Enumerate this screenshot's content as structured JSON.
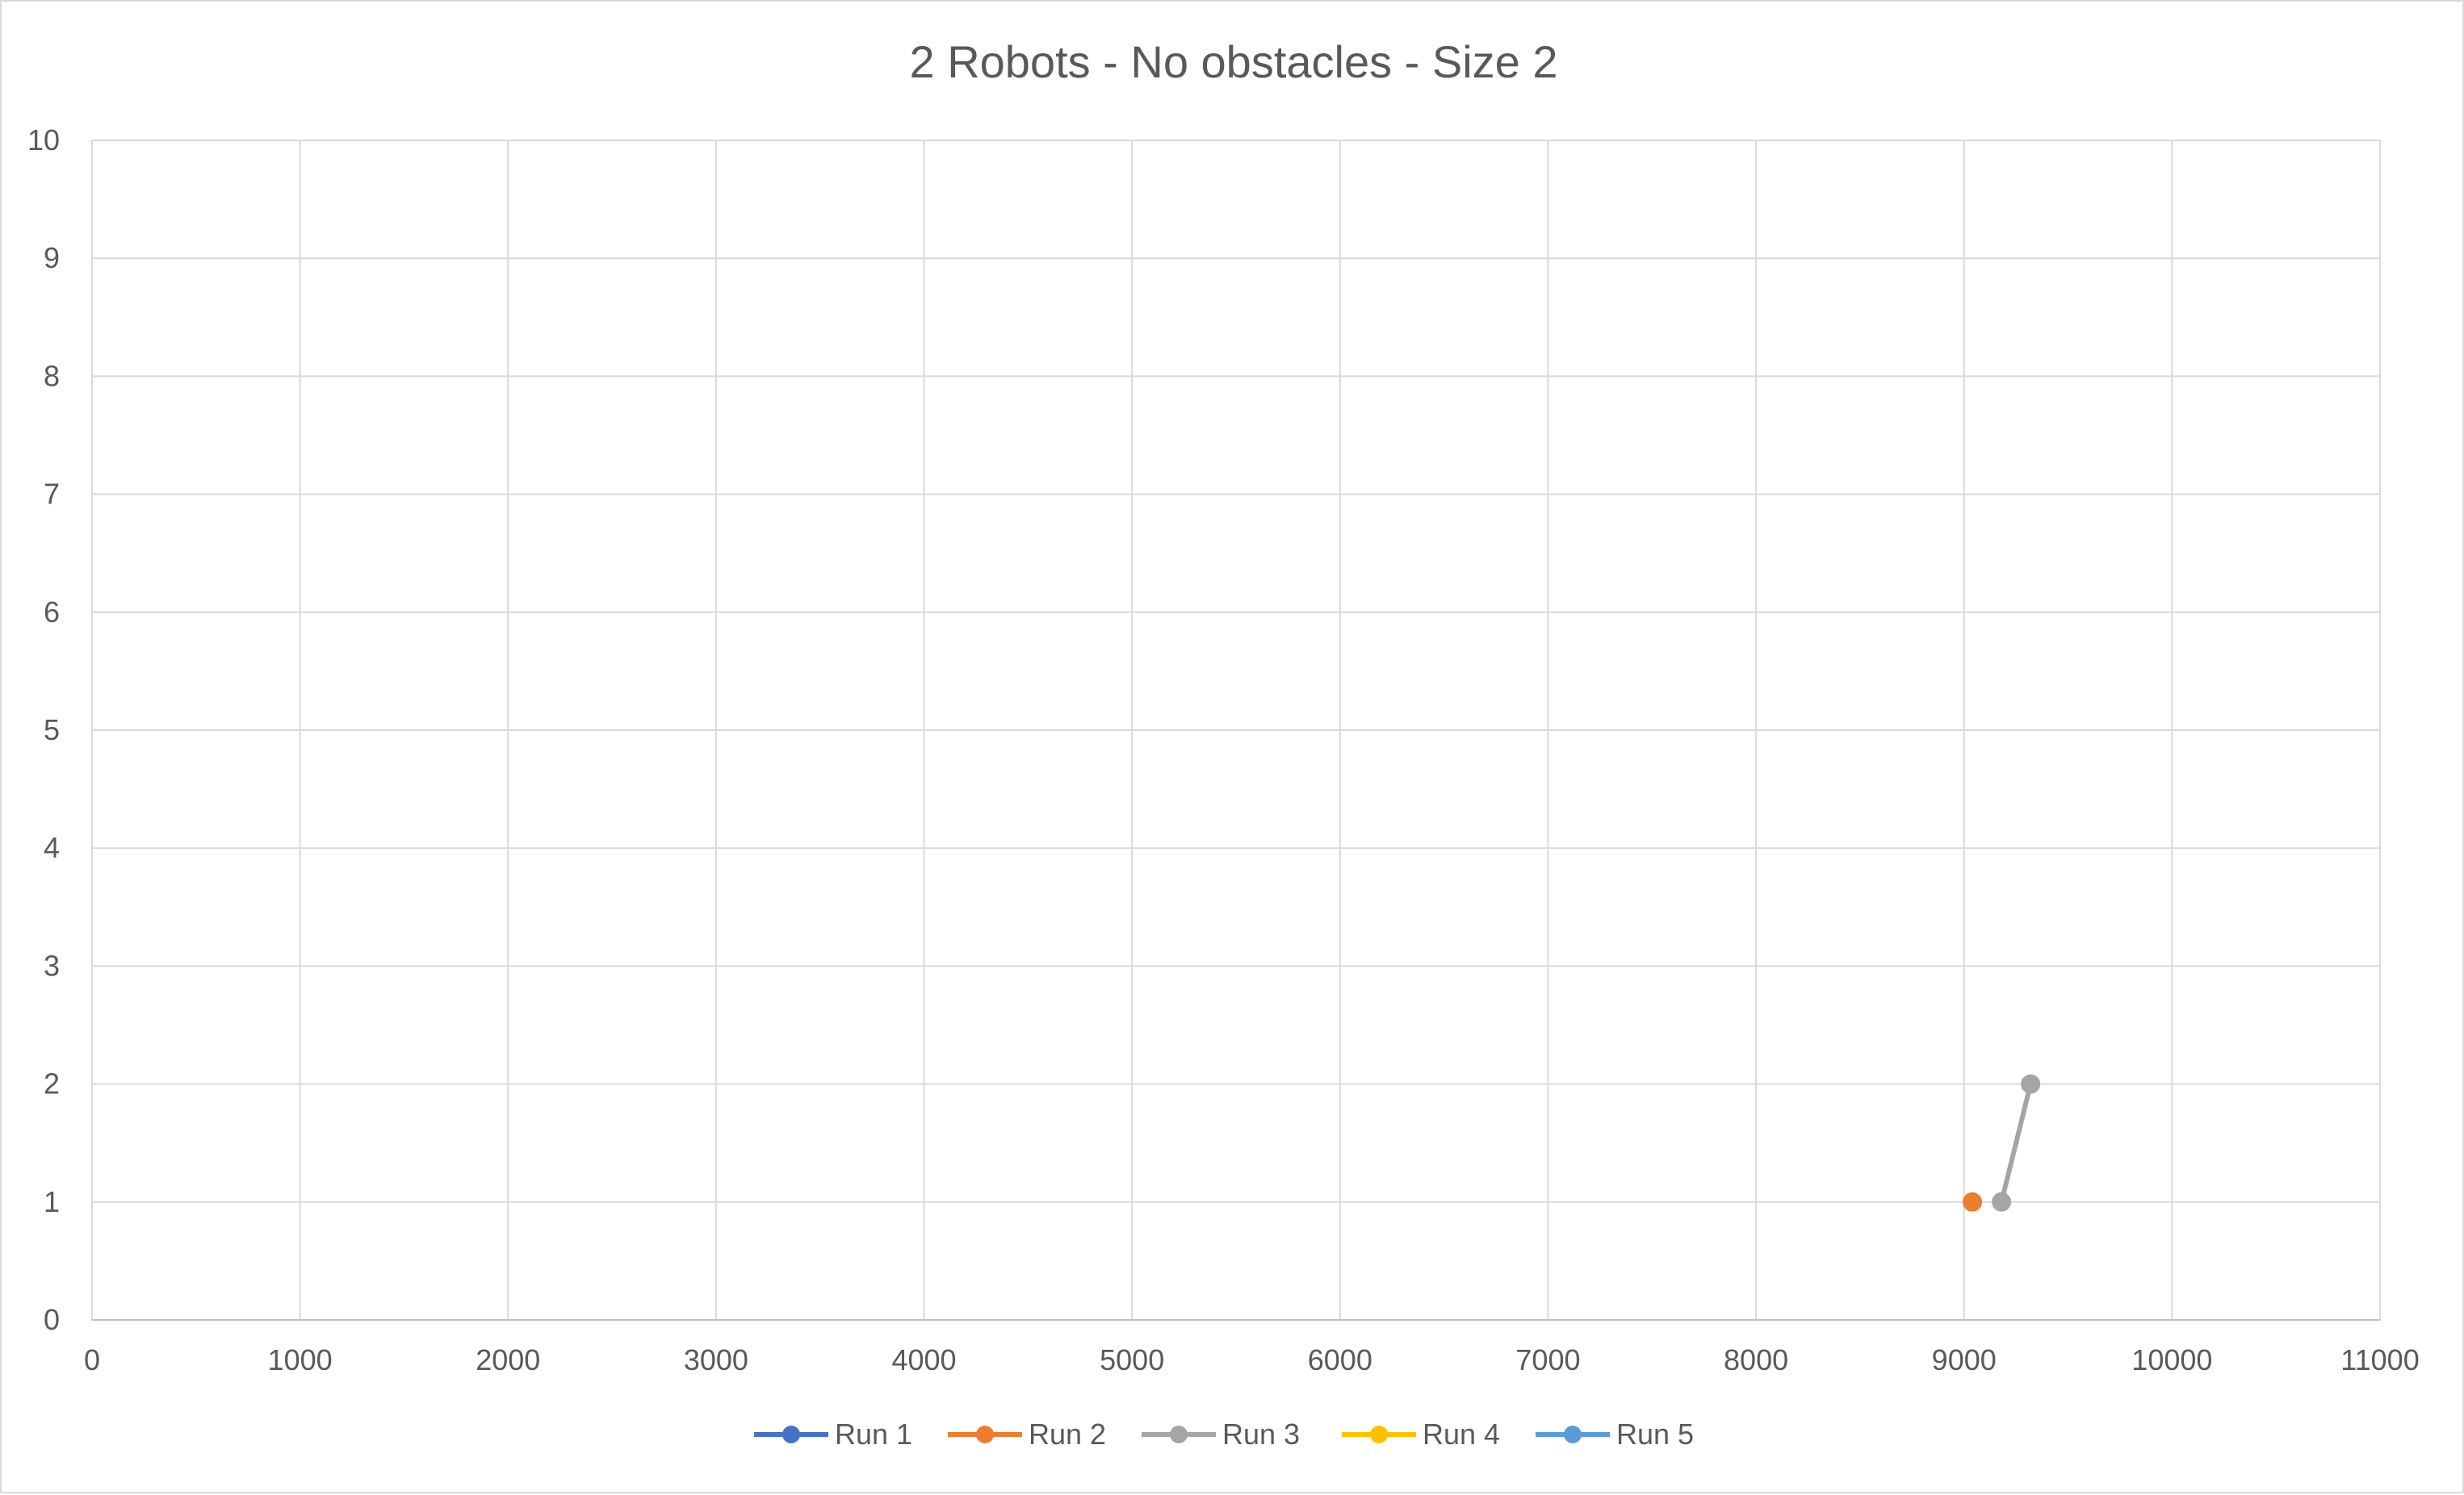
{
  "chart_data": {
    "type": "scatter",
    "title": "2 Robots - No obstacles - Size 2",
    "xlabel": "",
    "ylabel": "",
    "xlim": [
      0,
      11000
    ],
    "ylim": [
      0,
      10
    ],
    "x_ticks": [
      0,
      1000,
      2000,
      3000,
      4000,
      5000,
      6000,
      7000,
      8000,
      9000,
      10000,
      11000
    ],
    "y_ticks": [
      0,
      1,
      2,
      3,
      4,
      5,
      6,
      7,
      8,
      9,
      10
    ],
    "grid": true,
    "legend_position": "bottom",
    "series": [
      {
        "name": "Run 1",
        "color": "#4472C4",
        "points": []
      },
      {
        "name": "Run 2",
        "color": "#ED7D31",
        "points": [
          [
            9040,
            1
          ]
        ]
      },
      {
        "name": "Run 3",
        "color": "#A5A5A5",
        "points": [
          [
            9180,
            1
          ],
          [
            9320,
            2
          ]
        ]
      },
      {
        "name": "Run 4",
        "color": "#FFC000",
        "points": []
      },
      {
        "name": "Run 5",
        "color": "#5B9BD5",
        "points": []
      }
    ]
  }
}
